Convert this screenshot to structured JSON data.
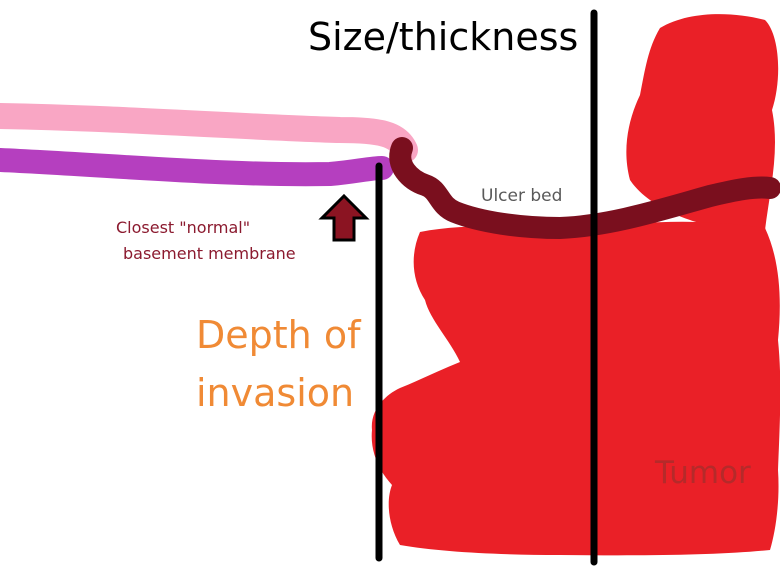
{
  "labels": {
    "size_thickness": "Size/thickness",
    "ulcer_bed": "Ulcer bed",
    "closest_normal_line1": "Closest \"normal\"",
    "closest_normal_line2": "basement membrane",
    "depth_line1": "Depth of",
    "depth_line2": "invasion",
    "tumor": "Tumor"
  },
  "colors": {
    "epithelium_pink": "#f9a6c4",
    "basement_membrane_purple": "#b53fbf",
    "ulcer_bed_dark_red": "#7a0f1e",
    "tumor_red": "#ea2027",
    "arrow_fill": "#8b1422",
    "measure_line": "#000000",
    "depth_text_orange": "#f08a35"
  }
}
